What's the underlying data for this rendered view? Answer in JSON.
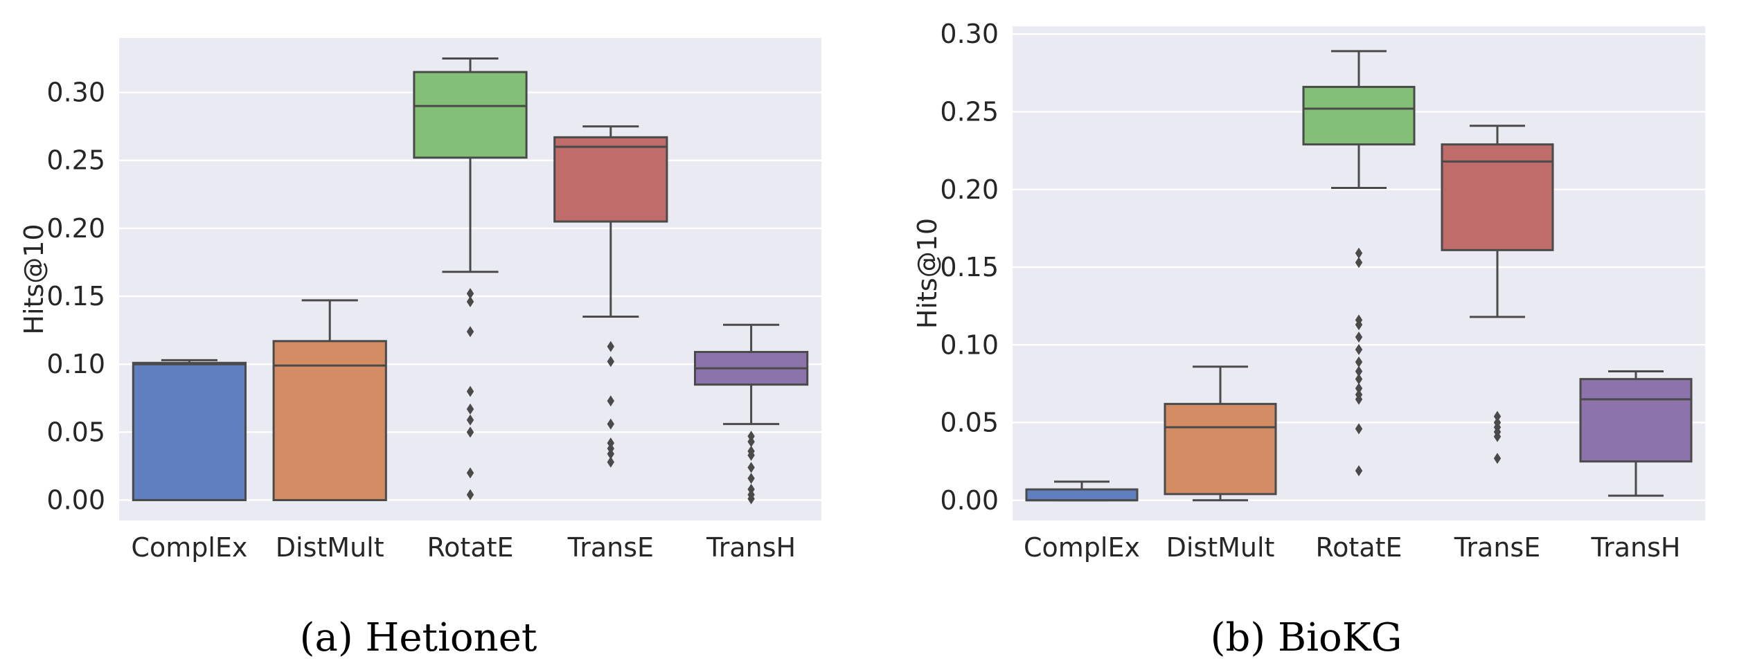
{
  "chart_data": [
    {
      "type": "box",
      "caption": "(a) Hetionet",
      "ylabel": "Hits@10",
      "ylim": [
        -0.015,
        0.34
      ],
      "yticks": [
        0.0,
        0.05,
        0.1,
        0.15,
        0.2,
        0.25,
        0.3
      ],
      "ytick_labels": [
        "0.00",
        "0.05",
        "0.10",
        "0.15",
        "0.20",
        "0.25",
        "0.30"
      ],
      "grid": true,
      "categories": [
        "ComplEx",
        "DistMult",
        "RotatE",
        "TransE",
        "TransH"
      ],
      "boxes": [
        {
          "name": "ComplEx",
          "color": "#5F7FBF",
          "whisker_low": 0.0,
          "q1": 0.0,
          "median": 0.1,
          "q3": 0.101,
          "whisker_high": 0.103,
          "outliers": []
        },
        {
          "name": "DistMult",
          "color": "#D38C63",
          "whisker_low": 0.0,
          "q1": 0.0,
          "median": 0.099,
          "q3": 0.117,
          "whisker_high": 0.147,
          "outliers": []
        },
        {
          "name": "RotatE",
          "color": "#84BF77",
          "whisker_low": 0.168,
          "q1": 0.252,
          "median": 0.29,
          "q3": 0.315,
          "whisker_high": 0.325,
          "outliers": [
            0.152,
            0.146,
            0.124,
            0.08,
            0.067,
            0.059,
            0.05,
            0.02,
            0.004
          ]
        },
        {
          "name": "TransE",
          "color": "#BF6C6A",
          "whisker_low": 0.135,
          "q1": 0.205,
          "median": 0.26,
          "q3": 0.267,
          "whisker_high": 0.275,
          "outliers": [
            0.113,
            0.102,
            0.073,
            0.056,
            0.042,
            0.038,
            0.034,
            0.028
          ]
        },
        {
          "name": "TransH",
          "color": "#8D73AB",
          "whisker_low": 0.056,
          "q1": 0.085,
          "median": 0.097,
          "q3": 0.109,
          "whisker_high": 0.129,
          "outliers": [
            0.047,
            0.043,
            0.036,
            0.033,
            0.024,
            0.016,
            0.008,
            0.004,
            0.001
          ]
        }
      ]
    },
    {
      "type": "box",
      "caption": "(b) BioKG",
      "ylabel": "Hits@10",
      "ylim": [
        -0.013,
        0.305
      ],
      "yticks": [
        0.0,
        0.05,
        0.1,
        0.15,
        0.2,
        0.25,
        0.3
      ],
      "ytick_labels": [
        "0.00",
        "0.05",
        "0.10",
        "0.15",
        "0.20",
        "0.25",
        "0.30"
      ],
      "grid": true,
      "categories": [
        "ComplEx",
        "DistMult",
        "RotatE",
        "TransE",
        "TransH"
      ],
      "boxes": [
        {
          "name": "ComplEx",
          "color": "#5F7FBF",
          "whisker_low": 0.0,
          "q1": 0.0,
          "median": 0.0,
          "q3": 0.007,
          "whisker_high": 0.012,
          "outliers": []
        },
        {
          "name": "DistMult",
          "color": "#D38C63",
          "whisker_low": 0.0,
          "q1": 0.004,
          "median": 0.047,
          "q3": 0.062,
          "whisker_high": 0.086,
          "outliers": []
        },
        {
          "name": "RotatE",
          "color": "#84BF77",
          "whisker_low": 0.201,
          "q1": 0.229,
          "median": 0.252,
          "q3": 0.266,
          "whisker_high": 0.289,
          "outliers": [
            0.159,
            0.153,
            0.116,
            0.113,
            0.105,
            0.097,
            0.089,
            0.083,
            0.078,
            0.072,
            0.068,
            0.065,
            0.046,
            0.019
          ]
        },
        {
          "name": "TransE",
          "color": "#BF6C6A",
          "whisker_low": 0.118,
          "q1": 0.161,
          "median": 0.218,
          "q3": 0.229,
          "whisker_high": 0.241,
          "outliers": [
            0.054,
            0.05,
            0.047,
            0.044,
            0.041,
            0.027
          ]
        },
        {
          "name": "TransH",
          "color": "#8D73AB",
          "whisker_low": 0.003,
          "q1": 0.025,
          "median": 0.065,
          "q3": 0.078,
          "whisker_high": 0.083,
          "outliers": []
        }
      ]
    }
  ],
  "style": {
    "plot_background": "#EAEAF2",
    "grid_color": "#FFFFFF",
    "line_color": "#4A4A4A",
    "text_color": "#262626"
  }
}
